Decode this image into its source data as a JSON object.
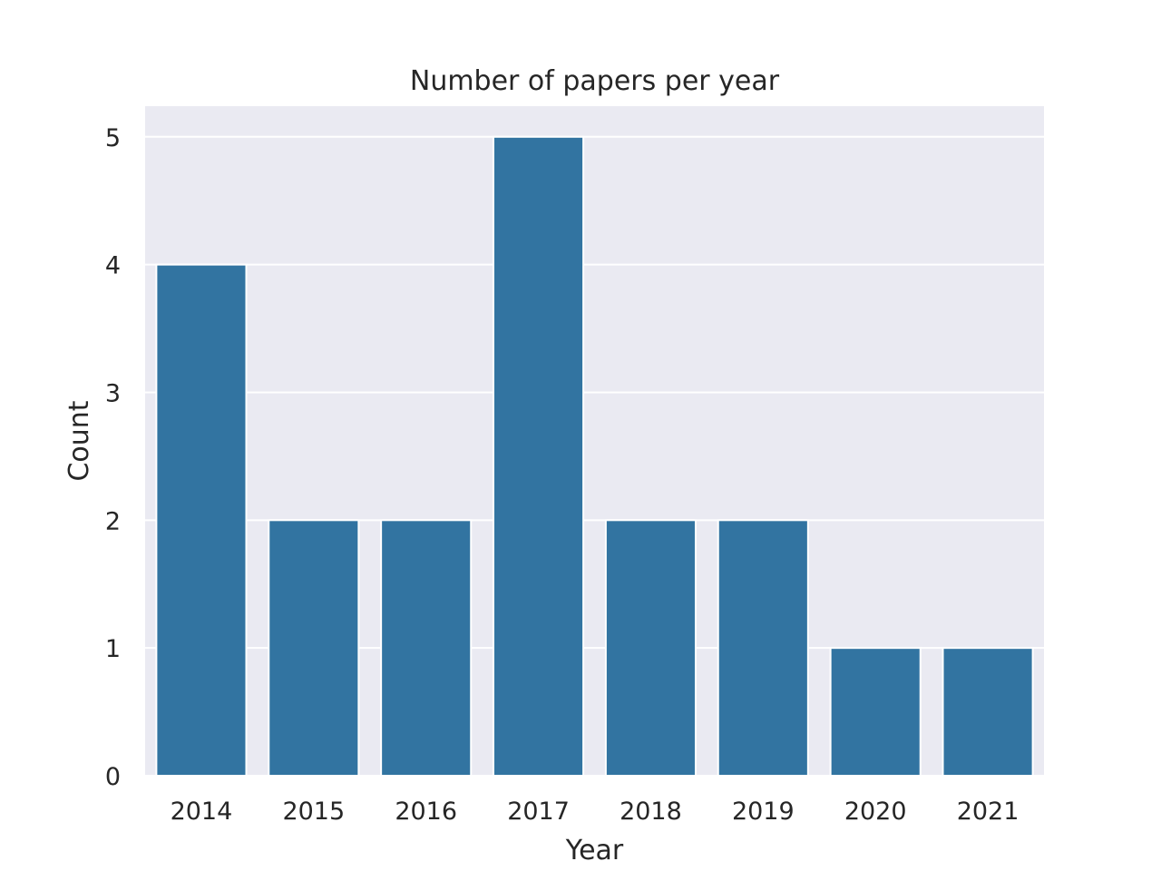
{
  "chart_data": {
    "type": "bar",
    "title": "Number of papers per year",
    "xlabel": "Year",
    "ylabel": "Count",
    "categories": [
      "2014",
      "2015",
      "2016",
      "2017",
      "2018",
      "2019",
      "2020",
      "2021"
    ],
    "values": [
      4,
      2,
      2,
      5,
      2,
      2,
      1,
      1
    ],
    "ylim": [
      0,
      5.24
    ],
    "yticks": [
      "0",
      "1",
      "2",
      "3",
      "4",
      "5"
    ],
    "grid": true,
    "legend": "none",
    "colors": {
      "bar": "#3274a1",
      "plot_background": "#eaeaf2",
      "grid": "#ffffff",
      "text": "#262626"
    }
  }
}
